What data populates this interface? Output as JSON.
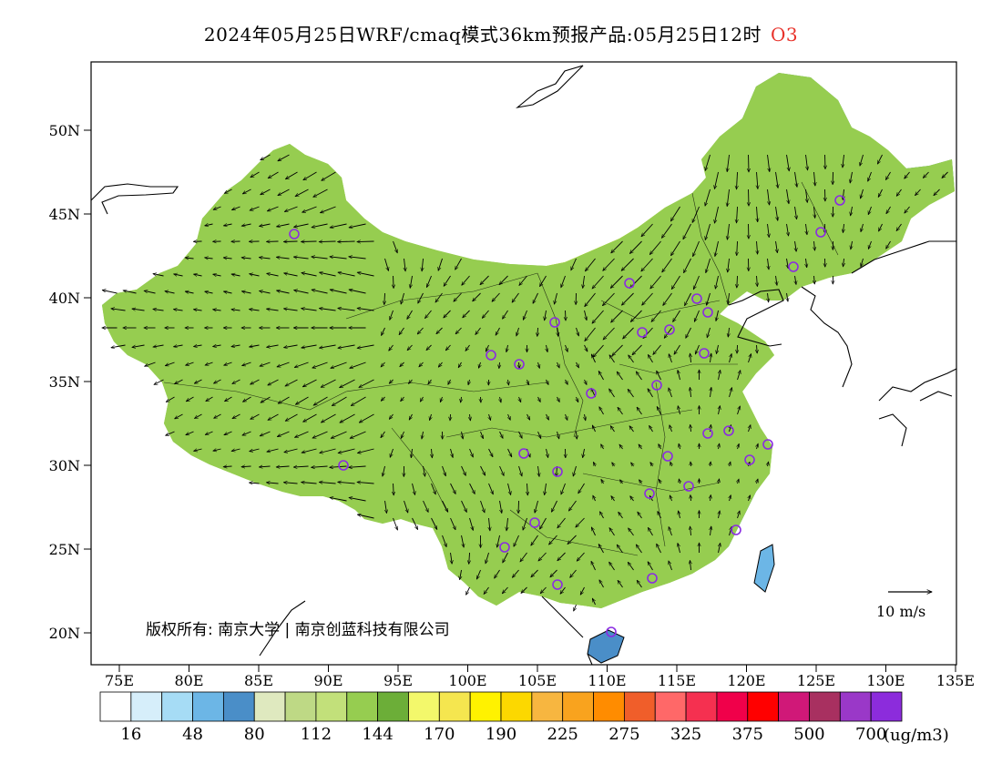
{
  "title": {
    "main": "2024年05月25日WRF/cmaq模式36km预报产品:05月25日12时",
    "species": "O3",
    "species_color": "#e8322a"
  },
  "axes": {
    "lat_ticks": [
      "50N",
      "45N",
      "40N",
      "35N",
      "30N",
      "25N",
      "20N"
    ],
    "lon_ticks": [
      "75E",
      "80E",
      "85E",
      "90E",
      "95E",
      "100E",
      "105E",
      "110E",
      "115E",
      "120E",
      "125E",
      "130E",
      "135E"
    ]
  },
  "wind_reference": {
    "label": "10 m/s"
  },
  "copyright": "版权所有: 南京大学 | 南京创蓝科技有限公司",
  "colorbar": {
    "unit": "(ug/m3)",
    "labels": [
      "16",
      "48",
      "80",
      "112",
      "144",
      "170",
      "190",
      "225",
      "275",
      "325",
      "375",
      "500",
      "700"
    ],
    "colors": [
      "#ffffff",
      "#d6eefa",
      "#a6dcf5",
      "#6cb6e6",
      "#4a8ec8",
      "#dfe9bf",
      "#bed985",
      "#c2e07a",
      "#96cd50",
      "#6cae38",
      "#f3f86b",
      "#f5e64f",
      "#fff200",
      "#fcd800",
      "#f7b640",
      "#f9a31e",
      "#ff8c00",
      "#f05e2a",
      "#ff6868",
      "#f53050",
      "#f0004a",
      "#ff0000",
      "#d01878",
      "#a83060",
      "#9a38c8",
      "#8c2cdc"
    ]
  },
  "map": {
    "stations_color": "#8a2be2",
    "regions": {
      "base_green": "#96cd50",
      "light_green": "#c2e07a",
      "dark_green": "#6cae38",
      "pale_green": "#dfe9bf",
      "yellow": "#fff200",
      "light_yellow": "#f5e64f",
      "orange": "#f7b640",
      "dark_orange": "#ff8c00",
      "red": "#f05e2a",
      "blue": "#4a8ec8",
      "light_blue": "#6cb6e6"
    }
  }
}
